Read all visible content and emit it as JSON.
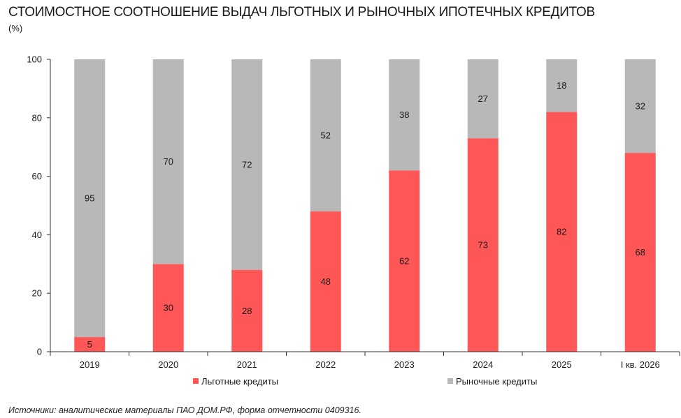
{
  "title": "СТОИМОСТНОЕ СООТНОШЕНИЕ ВЫДАЧ ЛЬГОТНЫХ И РЫНОЧНЫХ ИПОТЕЧНЫХ КРЕДИТОВ",
  "unit": "(%)",
  "source": "Источники: аналитические материалы ПАО ДОМ.РФ, формa отчетности 0409316.",
  "colors": {
    "preferential": "#ff5757",
    "market": "#b8b8b8"
  },
  "chart_data": {
    "type": "bar",
    "stacked": true,
    "categories": [
      "2019",
      "2020",
      "2021",
      "2022",
      "2023",
      "2024",
      "2025",
      "I кв. 2026"
    ],
    "series": [
      {
        "name": "Льготные кредиты",
        "values": [
          5,
          30,
          28,
          48,
          62,
          73,
          82,
          68
        ],
        "color": "#ff5757"
      },
      {
        "name": "Рыночные кредиты",
        "values": [
          95,
          70,
          72,
          52,
          38,
          27,
          18,
          32
        ],
        "color": "#b8b8b8"
      }
    ],
    "ylim": [
      0,
      100
    ],
    "yticks": [
      0,
      20,
      40,
      60,
      80,
      100
    ],
    "grid": false,
    "legend": "bottom"
  }
}
